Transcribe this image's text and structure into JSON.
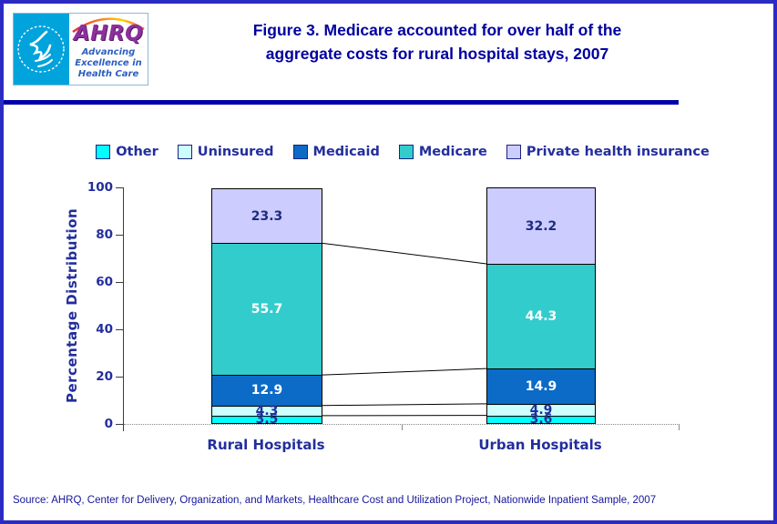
{
  "header": {
    "logo": {
      "brand": "AHRQ",
      "tagline_lines": [
        "Advancing",
        "Excellence in",
        "Health Care"
      ]
    },
    "title_line1": "Figure 3. Medicare accounted for over half of the",
    "title_line2": "aggregate costs for rural hospital stays, 2007",
    "title_color": "#0000A0"
  },
  "chart_data": {
    "type": "bar",
    "stacked": true,
    "categories": [
      "Rural Hospitals",
      "Urban Hospitals"
    ],
    "series": [
      {
        "name": "Other",
        "color": "#00FFFF",
        "label_color": "#232E9C",
        "values": [
          3.5,
          3.6
        ]
      },
      {
        "name": "Uninsured",
        "color": "#CCFFFF",
        "label_color": "#232E9C",
        "values": [
          4.3,
          4.9
        ]
      },
      {
        "name": "Medicaid",
        "color": "#0B6BC7",
        "label_color": "#FFFFFF",
        "values": [
          12.9,
          14.9
        ]
      },
      {
        "name": "Medicare",
        "color": "#33CCCC",
        "label_color": "#FFFFFF",
        "values": [
          55.7,
          44.3
        ]
      },
      {
        "name": "Private health insurance",
        "color": "#CCCCFF",
        "label_color": "#1F2C7E",
        "values": [
          23.3,
          32.2
        ]
      }
    ],
    "ylabel": "Percentage Distribution",
    "xlabel": "",
    "ylim": [
      0,
      100
    ],
    "yticks": [
      0,
      20,
      40,
      60,
      80,
      100
    ],
    "legend_position": "top",
    "grid": false,
    "connector_lines": true
  },
  "source_note": "Source: AHRQ, Center for Delivery, Organization, and Markets, Healthcare Cost and Utilization Project, Nationwide Inpatient Sample, 2007"
}
